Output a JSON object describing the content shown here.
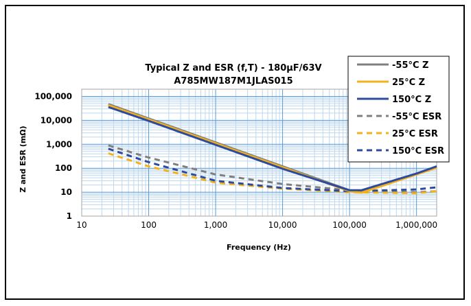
{
  "chart_data": {
    "type": "line",
    "title": "Typical Z and ESR (f,T) - 180µF/63V",
    "subtitle": "A785MW187M1JLAS015",
    "xlabel": "Frequency (Hz)",
    "ylabel": "Z and ESR (mΩ)",
    "x_scale": "log",
    "y_scale": "log",
    "xlim": [
      10,
      2000000
    ],
    "ylim": [
      1,
      200000
    ],
    "x_ticks": [
      10,
      100,
      1000,
      10000,
      100000,
      1000000
    ],
    "x_tick_labels": [
      "10",
      "100",
      "1,000",
      "10,000",
      "100,000",
      "1,000,000"
    ],
    "y_ticks": [
      1,
      10,
      100,
      1000,
      10000,
      100000
    ],
    "y_tick_labels": [
      "1",
      "10",
      "100",
      "1,000",
      "10,000",
      "100,000"
    ],
    "grid": true,
    "legend_position": "top-right",
    "series": [
      {
        "name": "-55°C Z",
        "color": "#7f7f7f",
        "style": "solid",
        "x": [
          25,
          100,
          1000,
          10000,
          100000,
          150000,
          1000000,
          2000000
        ],
        "y": [
          48000,
          12000,
          1200,
          120,
          12,
          10,
          60,
          110
        ]
      },
      {
        "name": "25°C Z",
        "color": "#f2b21b",
        "style": "solid",
        "x": [
          25,
          100,
          1000,
          10000,
          100000,
          150000,
          1000000,
          2000000
        ],
        "y": [
          43000,
          11000,
          1100,
          110,
          11,
          9.5,
          55,
          105
        ]
      },
      {
        "name": "150°C Z",
        "color": "#2e4a9e",
        "style": "solid",
        "x": [
          25,
          100,
          1000,
          10000,
          100000,
          150000,
          1000000,
          2000000
        ],
        "y": [
          36000,
          9500,
          950,
          95,
          12,
          12,
          60,
          120
        ]
      },
      {
        "name": "-55°C ESR",
        "color": "#7f7f7f",
        "style": "dashed",
        "x": [
          25,
          100,
          1000,
          10000,
          100000,
          1000000,
          2000000
        ],
        "y": [
          900,
          280,
          55,
          22,
          12,
          10,
          11
        ]
      },
      {
        "name": "25°C ESR",
        "color": "#f2b21b",
        "style": "dashed",
        "x": [
          25,
          100,
          1000,
          10000,
          100000,
          1000000,
          2000000
        ],
        "y": [
          420,
          120,
          25,
          14,
          10,
          9,
          11
        ]
      },
      {
        "name": "150°C ESR",
        "color": "#2e4a9e",
        "style": "dashed",
        "x": [
          25,
          100,
          1000,
          10000,
          100000,
          1000000,
          2000000
        ],
        "y": [
          650,
          180,
          30,
          15,
          11,
          13,
          16
        ]
      }
    ]
  }
}
